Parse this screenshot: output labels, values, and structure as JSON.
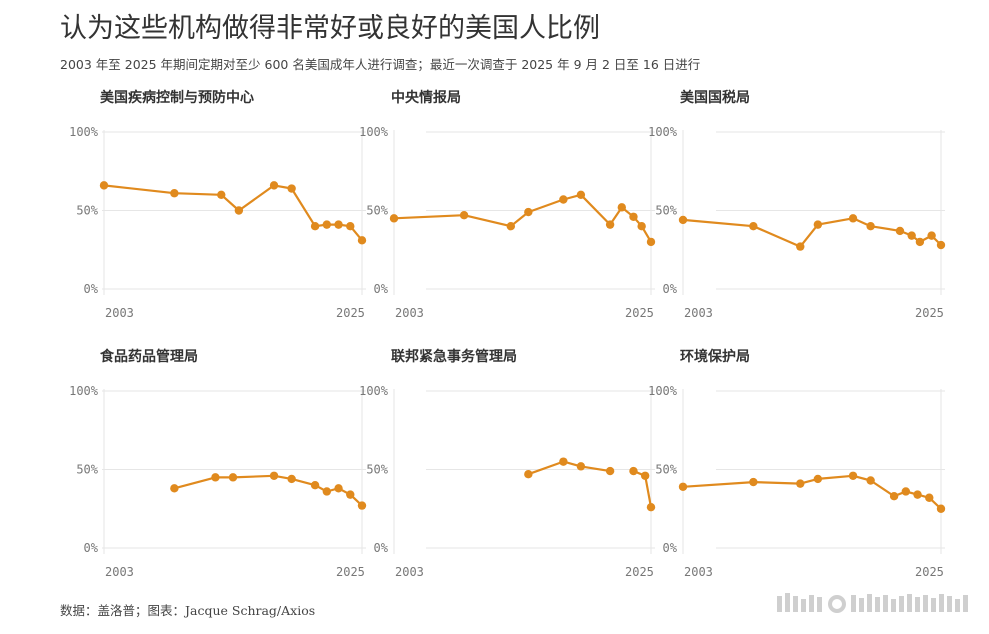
{
  "title": "认为这些机构做得非常好或良好的美国人比例",
  "subtitle": "2003 年至 2025 年期间定期对至少 600 名美国成年人进行调查；最近一次调查于 2025 年 9 月 2 日至 16 日进行",
  "footer": "数据：盖洛普；图表：Jacque Schrag/Axios",
  "colors": {
    "line": "#e08a1e",
    "grid": "#e6e6e6",
    "axis": "#999999",
    "tick": "#777777",
    "panel_title": "#333333"
  },
  "chart_data": [
    {
      "type": "line",
      "title": "美国疾病控制与预防中心",
      "ylim": [
        0,
        100
      ],
      "yticks": [
        0,
        50,
        100
      ],
      "ytick_labels": [
        "0%",
        "50%",
        "100%"
      ],
      "xlim": [
        2003,
        2025
      ],
      "xtick_labels": [
        "2003",
        "2025"
      ],
      "points": [
        {
          "x": 2003.0,
          "y": 66
        },
        {
          "x": 2009.0,
          "y": 61
        },
        {
          "x": 2013.0,
          "y": 60
        },
        {
          "x": 2014.5,
          "y": 50
        },
        {
          "x": 2017.5,
          "y": 66
        },
        {
          "x": 2019.0,
          "y": 64
        },
        {
          "x": 2021.0,
          "y": 40
        },
        {
          "x": 2022.0,
          "y": 41
        },
        {
          "x": 2023.0,
          "y": 41
        },
        {
          "x": 2024.0,
          "y": 40
        },
        {
          "x": 2025.0,
          "y": 31
        }
      ]
    },
    {
      "type": "line",
      "title": "中央情报局",
      "ylim": [
        0,
        100
      ],
      "yticks": [
        0,
        50,
        100
      ],
      "ytick_labels": [
        "0%",
        "50%",
        "100%"
      ],
      "xlim": [
        2003,
        2025
      ],
      "xtick_labels": [
        "2003",
        "2025"
      ],
      "points": [
        {
          "x": 2003.0,
          "y": 45
        },
        {
          "x": 2009.0,
          "y": 47
        },
        {
          "x": 2013.0,
          "y": 40
        },
        {
          "x": 2014.5,
          "y": 49
        },
        {
          "x": 2017.5,
          "y": 57
        },
        {
          "x": 2019.0,
          "y": 60
        },
        {
          "x": 2021.5,
          "y": 41
        },
        {
          "x": 2022.5,
          "y": 52
        },
        {
          "x": 2023.5,
          "y": 46
        },
        {
          "x": 2024.2,
          "y": 40
        },
        {
          "x": 2025.0,
          "y": 30
        }
      ]
    },
    {
      "type": "line",
      "title": "美国国税局",
      "ylim": [
        0,
        100
      ],
      "yticks": [
        0,
        50,
        100
      ],
      "ytick_labels": [
        "0%",
        "50%",
        "100%"
      ],
      "xlim": [
        2003,
        2025
      ],
      "xtick_labels": [
        "2003",
        "2025"
      ],
      "points": [
        {
          "x": 2003.0,
          "y": 44
        },
        {
          "x": 2009.0,
          "y": 40
        },
        {
          "x": 2013.0,
          "y": 27
        },
        {
          "x": 2014.5,
          "y": 41
        },
        {
          "x": 2017.5,
          "y": 45
        },
        {
          "x": 2019.0,
          "y": 40
        },
        {
          "x": 2021.5,
          "y": 37
        },
        {
          "x": 2022.5,
          "y": 34
        },
        {
          "x": 2023.2,
          "y": 30
        },
        {
          "x": 2024.2,
          "y": 34
        },
        {
          "x": 2025.0,
          "y": 28
        }
      ]
    },
    {
      "type": "line",
      "title": "食品药品管理局",
      "ylim": [
        0,
        100
      ],
      "yticks": [
        0,
        50,
        100
      ],
      "ytick_labels": [
        "0%",
        "50%",
        "100%"
      ],
      "xlim": [
        2003,
        2025
      ],
      "xtick_labels": [
        "2003",
        "2025"
      ],
      "points": [
        {
          "x": 2009.0,
          "y": 38
        },
        {
          "x": 2012.5,
          "y": 45
        },
        {
          "x": 2014.0,
          "y": 45
        },
        {
          "x": 2017.5,
          "y": 46
        },
        {
          "x": 2019.0,
          "y": 44
        },
        {
          "x": 2021.0,
          "y": 40
        },
        {
          "x": 2022.0,
          "y": 36
        },
        {
          "x": 2023.0,
          "y": 38
        },
        {
          "x": 2024.0,
          "y": 34
        },
        {
          "x": 2025.0,
          "y": 27
        }
      ]
    },
    {
      "type": "line",
      "title": "联邦紧急事务管理局",
      "ylim": [
        0,
        100
      ],
      "yticks": [
        0,
        50,
        100
      ],
      "ytick_labels": [
        "0%",
        "50%",
        "100%"
      ],
      "xlim": [
        2003,
        2025
      ],
      "xtick_labels": [
        "2003",
        "2025"
      ],
      "points": [
        {
          "x": 2014.5,
          "y": 47
        },
        {
          "x": 2017.5,
          "y": 55
        },
        {
          "x": 2019.0,
          "y": 52
        },
        {
          "x": 2021.5,
          "y": 49
        }
      ],
      "points_segment_2": [
        {
          "x": 2023.5,
          "y": 49
        },
        {
          "x": 2024.5,
          "y": 46
        },
        {
          "x": 2025.0,
          "y": 26
        }
      ]
    },
    {
      "type": "line",
      "title": "环境保护局",
      "ylim": [
        0,
        100
      ],
      "yticks": [
        0,
        50,
        100
      ],
      "ytick_labels": [
        "0%",
        "50%",
        "100%"
      ],
      "xlim": [
        2003,
        2025
      ],
      "xtick_labels": [
        "2003",
        "2025"
      ],
      "points": [
        {
          "x": 2003.0,
          "y": 39
        },
        {
          "x": 2009.0,
          "y": 42
        },
        {
          "x": 2013.0,
          "y": 41
        },
        {
          "x": 2014.5,
          "y": 44
        },
        {
          "x": 2017.5,
          "y": 46
        },
        {
          "x": 2019.0,
          "y": 43
        },
        {
          "x": 2021.0,
          "y": 33
        },
        {
          "x": 2022.0,
          "y": 36
        },
        {
          "x": 2023.0,
          "y": 34
        },
        {
          "x": 2024.0,
          "y": 32
        },
        {
          "x": 2025.0,
          "y": 25
        }
      ]
    }
  ]
}
